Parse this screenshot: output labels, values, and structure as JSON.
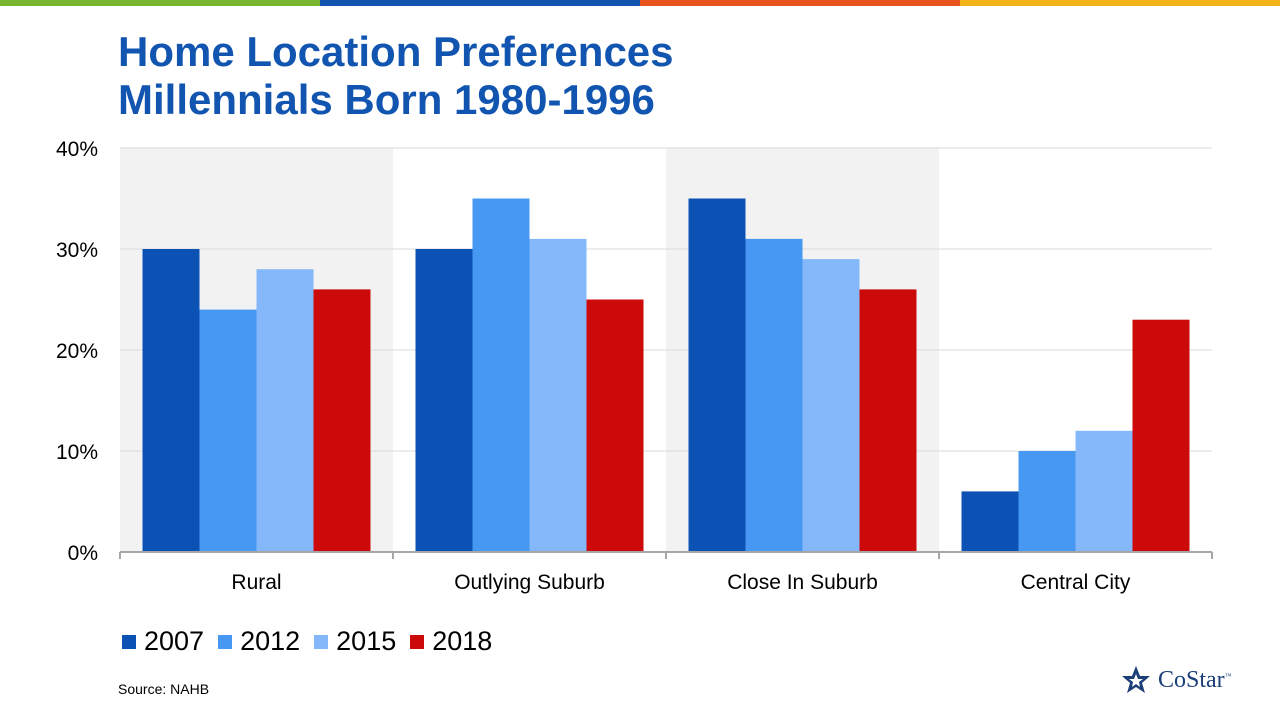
{
  "brand_colors": [
    "#7ab530",
    "#1155b0",
    "#e8541e",
    "#f5b31a"
  ],
  "title": [
    "Home Location Preferences",
    "Millennials Born 1980-1996"
  ],
  "source": "Source: NAHB",
  "logo": {
    "text": "CoStar",
    "tm": "™",
    "icon": "costar-star-icon"
  },
  "chart_data": {
    "type": "bar",
    "categories": [
      "Rural",
      "Outlying Suburb",
      "Close In Suburb",
      "Central City"
    ],
    "series": [
      {
        "name": "2007",
        "color": "#0c52b5",
        "values": [
          30,
          30,
          35,
          6
        ]
      },
      {
        "name": "2012",
        "color": "#4698f3",
        "values": [
          24,
          35,
          31,
          10
        ]
      },
      {
        "name": "2015",
        "color": "#84b8fa",
        "values": [
          28,
          31,
          29,
          12
        ]
      },
      {
        "name": "2018",
        "color": "#cc0a0a",
        "values": [
          26,
          25,
          26,
          23
        ]
      }
    ],
    "yticks": [
      "0%",
      "10%",
      "20%",
      "30%",
      "40%"
    ],
    "ylim": [
      0,
      40
    ],
    "grid": true,
    "legend_position": "bottom-left",
    "alternating_band_color": "#f2f2f2"
  }
}
